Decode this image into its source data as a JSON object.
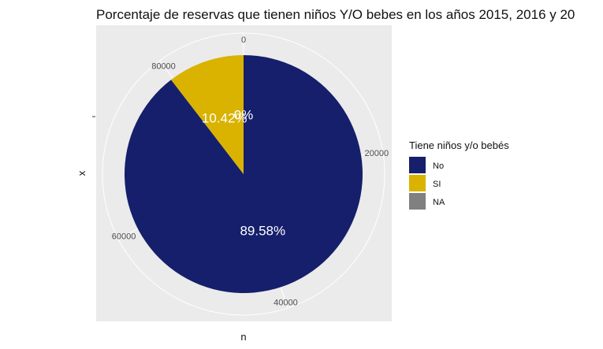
{
  "chart_data": {
    "type": "pie",
    "title": "Porcentaje de reservas que tienen niños Y/O bebes en los años 2015, 2016 y 20",
    "xlabel": "n",
    "ylabel": "x",
    "radial_ticks": [
      "0",
      "20000",
      "40000",
      "60000",
      "80000"
    ],
    "radial_tick_values": [
      0,
      20000,
      40000,
      60000,
      80000
    ],
    "total": 89000,
    "legend": {
      "title": "Tiene niños y/o bebés",
      "position": "right"
    },
    "slices": [
      {
        "name": "No",
        "value": 79725,
        "label": "89.58%",
        "color": "#161f6b"
      },
      {
        "name": "SI",
        "value": 9275,
        "label": "10.42%",
        "color": "#d9b300"
      },
      {
        "name": "NA",
        "value": 0,
        "label": "0%",
        "color": "#808080"
      }
    ]
  }
}
